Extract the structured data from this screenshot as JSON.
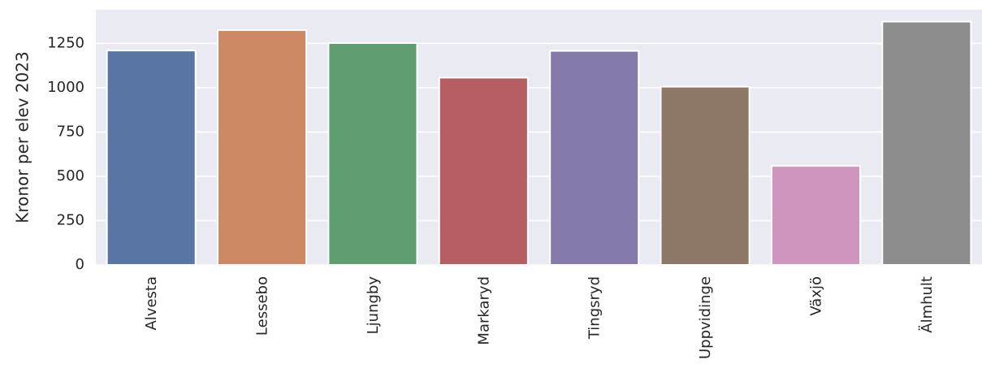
{
  "chart_data": {
    "type": "bar",
    "categories": [
      "Alvesta",
      "Lessebo",
      "Ljungby",
      "Markaryd",
      "Tingsryd",
      "Uppvidinge",
      "Växjö",
      "Älmhult"
    ],
    "values": [
      1210,
      1325,
      1252,
      1057,
      1208,
      1006,
      559,
      1373
    ],
    "colors": [
      "#5875a4",
      "#cc8963",
      "#5f9e6e",
      "#b55d60",
      "#857aab",
      "#8d7866",
      "#d095bf",
      "#8c8c8c"
    ],
    "xlabel": "",
    "ylabel": "Kronor per elev 2023",
    "ylim": [
      0,
      1440
    ],
    "yticks": [
      0,
      250,
      500,
      750,
      1000,
      1250
    ],
    "grid": true,
    "background": "#eaeaf2"
  }
}
